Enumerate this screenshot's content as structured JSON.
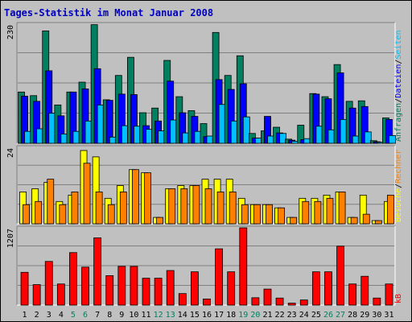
{
  "chart_data": {
    "type": "bar",
    "title": "Tages-Statistik im Monat Januar 2008",
    "categories": [
      "1",
      "2",
      "3",
      "4",
      "5",
      "6",
      "7",
      "8",
      "9",
      "10",
      "11",
      "12",
      "13",
      "14",
      "15",
      "16",
      "17",
      "18",
      "19",
      "20",
      "21",
      "22",
      "23",
      "24",
      "25",
      "26",
      "27",
      "28",
      "29",
      "30",
      "31"
    ],
    "weekend_days": [
      "5",
      "6",
      "12",
      "13",
      "19",
      "20",
      "26",
      "27"
    ],
    "panels": [
      {
        "name": "Anfragen / Dateien / Seiten",
        "max_label": "230",
        "ylim": [
          0,
          230
        ],
        "series": [
          {
            "name": "Anfragen",
            "color": "#008060",
            "values": [
              99,
              92,
              217,
              74,
              99,
              118,
              229,
              84,
              131,
              166,
              59,
              68,
              160,
              90,
              63,
              38,
              214,
              131,
              169,
              19,
              24,
              31,
              8,
              35,
              96,
              90,
              152,
              81,
              82,
              5,
              49
            ]
          },
          {
            "name": "Dateien",
            "color": "#0000ff",
            "values": [
              91,
              81,
              140,
              53,
              99,
              105,
              144,
              83,
              95,
              94,
              34,
              43,
              120,
              59,
              52,
              13,
              123,
              104,
              115,
              10,
              52,
              20,
              6,
              7,
              95,
              86,
              136,
              68,
              71,
              3,
              46
            ]
          },
          {
            "name": "Seiten",
            "color": "#00c0ff",
            "values": [
              23,
              28,
              58,
              18,
              23,
              43,
              74,
              12,
              34,
              33,
              27,
              24,
              45,
              20,
              23,
              14,
              75,
              43,
              51,
              10,
              14,
              19,
              4,
              9,
              33,
              26,
              46,
              14,
              22,
              2,
              15
            ]
          }
        ]
      },
      {
        "name": "Besuche / Rechner",
        "max_label": "24",
        "ylim": [
          0,
          24
        ],
        "series": [
          {
            "name": "Besuche",
            "color": "#ffff00",
            "values": [
              10,
              11,
              13,
              7,
              9,
              23,
              21,
              8,
              12,
              17,
              16,
              2,
              11,
              12,
              12,
              14,
              14,
              14,
              8,
              6,
              6,
              5,
              2,
              8,
              8,
              9,
              10,
              2,
              9,
              1,
              7
            ]
          },
          {
            "name": "Rechner",
            "color": "#ff8000",
            "values": [
              6,
              7,
              14,
              6,
              10,
              19,
              10,
              6,
              10,
              17,
              16,
              2,
              11,
              11,
              12,
              11,
              10,
              10,
              6,
              6,
              6,
              5,
              2,
              7,
              7,
              8,
              10,
              2,
              3,
              1,
              9
            ]
          }
        ]
      },
      {
        "name": "kB",
        "max_label": "1207",
        "ylim": [
          0,
          1207
        ],
        "series": [
          {
            "name": "kB",
            "color": "#ff0000",
            "values": [
              512,
              320,
              682,
              330,
              820,
              593,
              1050,
              460,
              605,
              605,
              420,
              420,
              540,
              180,
              520,
              95,
              879,
              520,
              1207,
              115,
              250,
              110,
              30,
              80,
              520,
              520,
              920,
              330,
              450,
              110,
              330
            ]
          }
        ]
      }
    ],
    "legend_right": {
      "panel1": [
        "Anfragen",
        "/",
        "Dateien",
        "/",
        "Seiten"
      ],
      "panel2": [
        "Besuche",
        "/",
        "Rechner"
      ],
      "panel3": [
        "kB"
      ]
    }
  },
  "colors": {
    "background": "#c0c0c0",
    "title": "#0000c0",
    "axis_text": "#000000",
    "weekend_text": "#008060",
    "grid": "#808080",
    "bevel_dark": "#808080",
    "bevel_light": "#ffffff"
  }
}
